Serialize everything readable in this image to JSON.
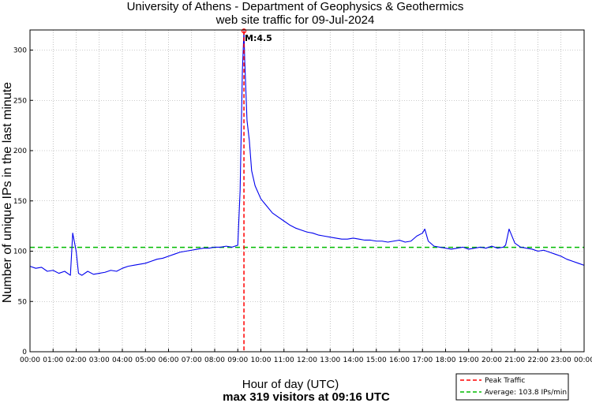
{
  "chart_data": {
    "type": "line",
    "title_line1": "University of Athens - Department of Geophysics & Geothermics",
    "title_line2": "web site traffic for 09-Jul-2024",
    "xlabel": "Hour of day (UTC)",
    "ylabel": "Number of unique IPs in the last minute",
    "summary": "max 319 visitors at 09:16 UTC",
    "xlim": [
      0,
      24
    ],
    "ylim": [
      0,
      320
    ],
    "x_ticks": [
      "00:00",
      "01:00",
      "02:00",
      "03:00",
      "04:00",
      "05:00",
      "06:00",
      "07:00",
      "08:00",
      "09:00",
      "10:00",
      "11:00",
      "12:00",
      "13:00",
      "14:00",
      "15:00",
      "16:00",
      "17:00",
      "18:00",
      "19:00",
      "20:00",
      "21:00",
      "22:00",
      "23:00",
      "00:00"
    ],
    "y_ticks": [
      0,
      50,
      100,
      150,
      200,
      250,
      300
    ],
    "grid": true,
    "series": [
      {
        "name": "Traffic",
        "color": "#0000ee",
        "x": [
          0.0,
          0.25,
          0.5,
          0.75,
          1.0,
          1.25,
          1.5,
          1.75,
          1.85,
          2.0,
          2.1,
          2.25,
          2.5,
          2.75,
          3.0,
          3.25,
          3.5,
          3.75,
          4.0,
          4.25,
          4.5,
          4.75,
          5.0,
          5.25,
          5.5,
          5.75,
          6.0,
          6.25,
          6.5,
          6.75,
          7.0,
          7.25,
          7.5,
          7.75,
          8.0,
          8.25,
          8.5,
          8.75,
          9.0,
          9.1,
          9.2,
          9.267,
          9.3,
          9.4,
          9.5,
          9.6,
          9.75,
          10.0,
          10.25,
          10.5,
          10.75,
          11.0,
          11.25,
          11.5,
          11.75,
          12.0,
          12.25,
          12.5,
          12.75,
          13.0,
          13.25,
          13.5,
          13.75,
          14.0,
          14.25,
          14.5,
          14.75,
          15.0,
          15.25,
          15.5,
          15.75,
          16.0,
          16.25,
          16.5,
          16.75,
          17.0,
          17.1,
          17.25,
          17.5,
          17.75,
          18.0,
          18.25,
          18.5,
          18.75,
          19.0,
          19.25,
          19.5,
          19.75,
          20.0,
          20.25,
          20.5,
          20.6,
          20.75,
          21.0,
          21.25,
          21.5,
          21.75,
          22.0,
          22.25,
          22.5,
          22.75,
          23.0,
          23.25,
          23.5,
          23.75,
          24.0
        ],
        "values": [
          85,
          83,
          84,
          80,
          81,
          78,
          80,
          76,
          118,
          100,
          78,
          76,
          80,
          77,
          78,
          79,
          81,
          80,
          83,
          85,
          86,
          87,
          88,
          90,
          92,
          93,
          95,
          97,
          99,
          100,
          101,
          102,
          103,
          103,
          104,
          104,
          105,
          104,
          106,
          160,
          280,
          319,
          290,
          230,
          210,
          180,
          165,
          152,
          145,
          138,
          134,
          130,
          126,
          123,
          121,
          119,
          118,
          116,
          115,
          114,
          113,
          112,
          112,
          113,
          112,
          111,
          111,
          110,
          110,
          109,
          110,
          111,
          109,
          110,
          115,
          118,
          122,
          110,
          105,
          104,
          103,
          102,
          103,
          104,
          102,
          103,
          104,
          103,
          105,
          103,
          104,
          106,
          122,
          108,
          104,
          103,
          102,
          100,
          101,
          99,
          97,
          95,
          92,
          90,
          88,
          86
        ]
      }
    ],
    "average": 103.8,
    "peak": {
      "x": 9.267,
      "y": 319,
      "label": "M:4.5"
    },
    "legend": [
      {
        "label": "Peak Traffic",
        "color": "#ff0000"
      },
      {
        "label": "Average: 103.8 IPs/min",
        "color": "#00bb00"
      }
    ],
    "legend_position": "bottom-right"
  }
}
